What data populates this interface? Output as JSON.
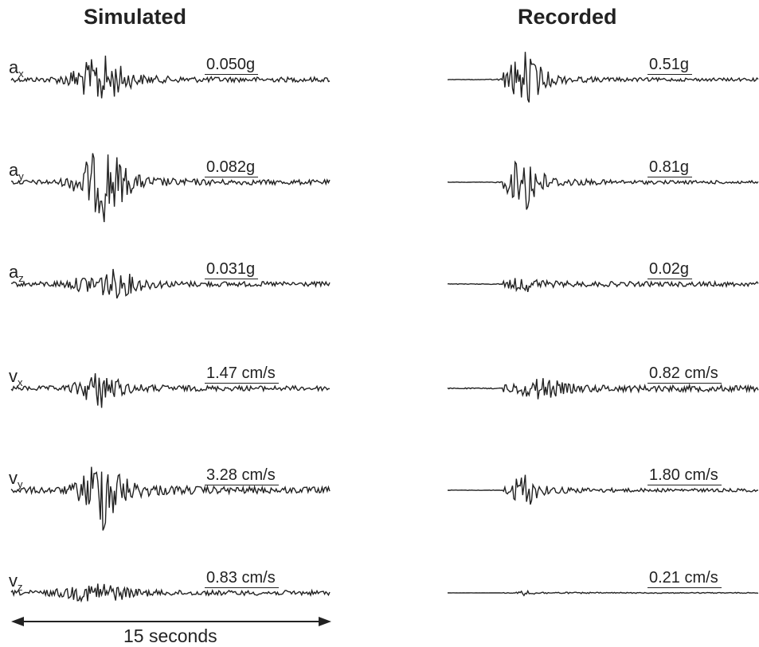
{
  "chart_data": {
    "type": "line",
    "title": "",
    "panels": [
      {
        "name": "Simulated",
        "traces": [
          {
            "component": "a",
            "sub": "x",
            "peak_label": "0.050g"
          },
          {
            "component": "a",
            "sub": "y",
            "peak_label": "0.082g"
          },
          {
            "component": "a",
            "sub": "z",
            "peak_label": "0.031g"
          },
          {
            "component": "v",
            "sub": "x",
            "peak_label": "1.47 cm/s"
          },
          {
            "component": "v",
            "sub": "y",
            "peak_label": "3.28 cm/s"
          },
          {
            "component": "v",
            "sub": "z",
            "peak_label": "0.83 cm/s"
          }
        ]
      },
      {
        "name": "Recorded",
        "traces": [
          {
            "component": "a",
            "sub": "x",
            "peak_label": "0.51g"
          },
          {
            "component": "a",
            "sub": "y",
            "peak_label": "0.81g"
          },
          {
            "component": "a",
            "sub": "z",
            "peak_label": "0.02g"
          },
          {
            "component": "v",
            "sub": "x",
            "peak_label": "0.82 cm/s"
          },
          {
            "component": "v",
            "sub": "y",
            "peak_label": "1.80 cm/s"
          },
          {
            "component": "v",
            "sub": "z",
            "peak_label": "0.21 cm/s"
          }
        ]
      }
    ],
    "time_scale": {
      "label": "15 seconds",
      "duration_s": 15
    },
    "line_color": "#222222",
    "grid": false,
    "legend": "none"
  }
}
